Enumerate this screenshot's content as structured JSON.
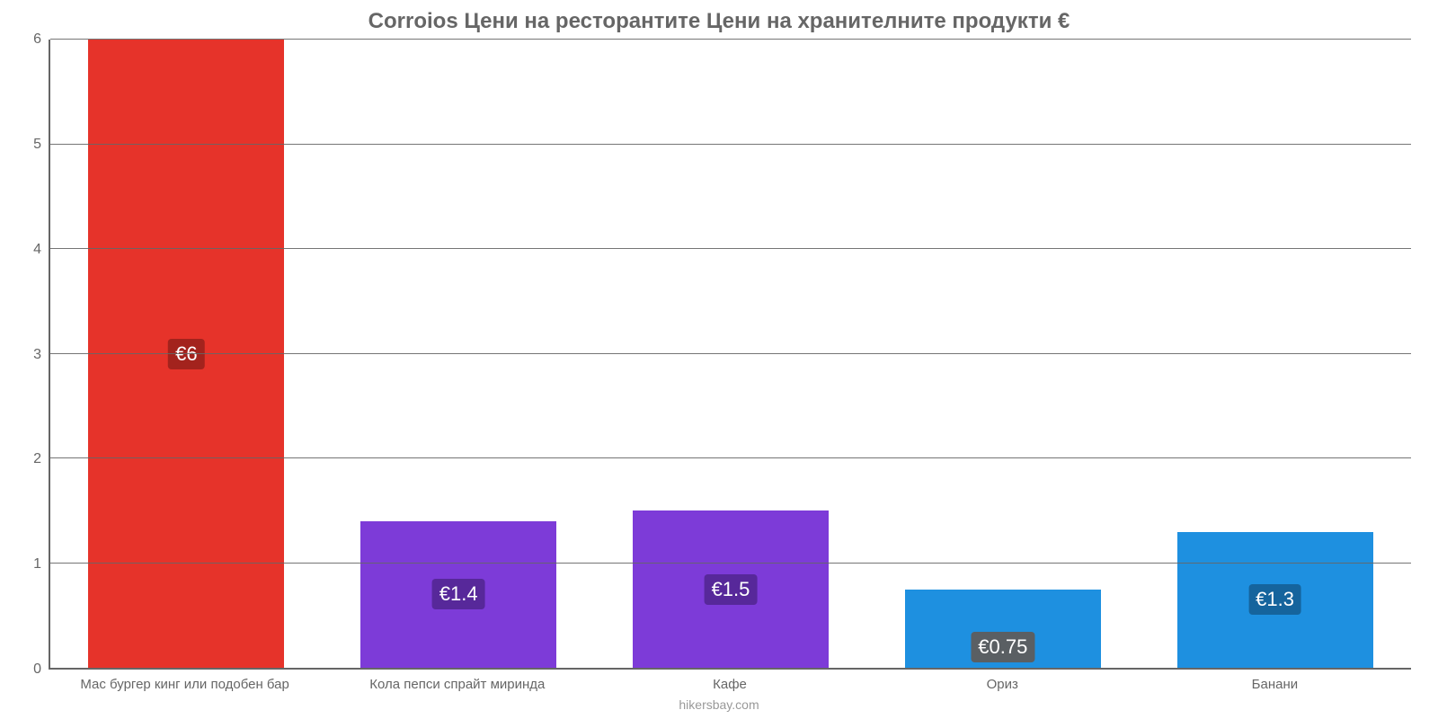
{
  "chart": {
    "type": "bar",
    "title": "Corroios Цени на ресторантите Цени на хранителните продукти €",
    "title_color": "#666666",
    "title_fontsize": 24,
    "background_color": "#ffffff",
    "axis_color": "#666666",
    "grid_color": "#666666",
    "label_color": "#666666",
    "label_fontsize": 15,
    "ylim": [
      0,
      6
    ],
    "ytick_step": 1,
    "yticks": [
      0,
      1,
      2,
      3,
      4,
      5,
      6
    ],
    "bar_width_ratio": 0.72,
    "value_label_fontsize": 22,
    "value_label_text_color": "#ffffff",
    "categories": [
      "Мас бургер кинг или подобен бар",
      "Кола пепси спрайт миринда",
      "Кафе",
      "Ориз",
      "Банани"
    ],
    "values": [
      6,
      1.4,
      1.5,
      0.75,
      1.3
    ],
    "value_labels": [
      "€6",
      "€1.4",
      "€1.5",
      "€0.75",
      "€1.3"
    ],
    "bar_colors": [
      "#e6332a",
      "#7d3bd8",
      "#7d3bd8",
      "#1e90e0",
      "#1e90e0"
    ],
    "value_label_bg_colors": [
      "#a3231d",
      "#57289a",
      "#57289a",
      "#5a5f63",
      "#15649d"
    ],
    "footer": "hikersbay.com",
    "footer_color": "#999999"
  }
}
